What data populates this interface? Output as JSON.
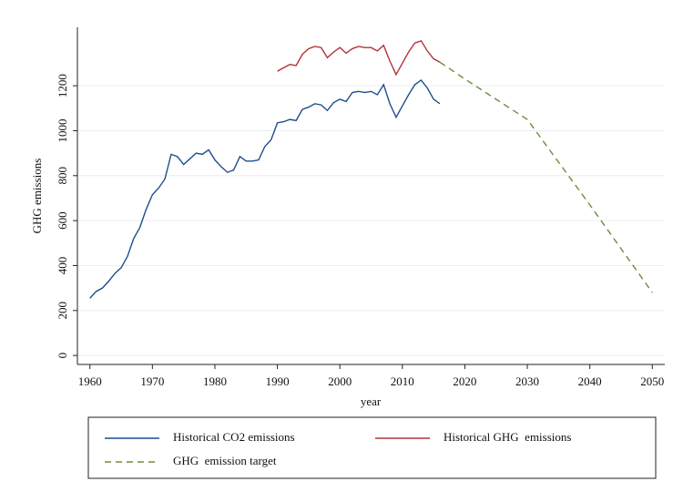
{
  "chart_data": {
    "type": "line",
    "x_label": "year",
    "y_label": "GHG emissions",
    "xlim": [
      1958,
      2052
    ],
    "ylim": [
      -40,
      1460
    ],
    "xticks": [
      1960,
      1970,
      1980,
      1990,
      2000,
      2010,
      2020,
      2030,
      2040,
      2050
    ],
    "yticks": [
      0,
      200,
      400,
      600,
      800,
      1000,
      1200
    ],
    "grid": true,
    "legend": "bottom",
    "series": [
      {
        "name": "Historical CO2 emissions",
        "color": "#1f4e8c",
        "style": "solid",
        "x": [
          1960,
          1961,
          1962,
          1963,
          1964,
          1965,
          1966,
          1967,
          1968,
          1969,
          1970,
          1971,
          1972,
          1973,
          1974,
          1975,
          1976,
          1977,
          1978,
          1979,
          1980,
          1981,
          1982,
          1983,
          1984,
          1985,
          1986,
          1987,
          1988,
          1989,
          1990,
          1991,
          1992,
          1993,
          1994,
          1995,
          1996,
          1997,
          1998,
          1999,
          2000,
          2001,
          2002,
          2003,
          2004,
          2005,
          2006,
          2007,
          2008,
          2009,
          2010,
          2011,
          2012,
          2013,
          2014,
          2015,
          2016
        ],
        "values": [
          255,
          285,
          300,
          330,
          365,
          390,
          440,
          520,
          570,
          650,
          715,
          745,
          785,
          895,
          885,
          850,
          875,
          900,
          895,
          915,
          870,
          840,
          815,
          825,
          885,
          865,
          865,
          870,
          930,
          960,
          1035,
          1040,
          1050,
          1045,
          1095,
          1105,
          1120,
          1115,
          1090,
          1125,
          1140,
          1130,
          1170,
          1175,
          1170,
          1175,
          1160,
          1205,
          1120,
          1060,
          1110,
          1160,
          1205,
          1225,
          1190,
          1140,
          1120
        ]
      },
      {
        "name": "Historical GHG  emissions",
        "color": "#b0343a",
        "style": "solid",
        "x": [
          1990,
          1991,
          1992,
          1993,
          1994,
          1995,
          1996,
          1997,
          1998,
          1999,
          2000,
          2001,
          2002,
          2003,
          2004,
          2005,
          2006,
          2007,
          2008,
          2009,
          2010,
          2011,
          2012,
          2013,
          2014,
          2015,
          2016
        ],
        "values": [
          1265,
          1280,
          1295,
          1290,
          1340,
          1365,
          1375,
          1370,
          1325,
          1350,
          1370,
          1345,
          1365,
          1375,
          1370,
          1370,
          1355,
          1380,
          1310,
          1250,
          1300,
          1350,
          1390,
          1400,
          1355,
          1320,
          1305
        ]
      },
      {
        "name": "GHG  emission target",
        "color": "#6b8e3a",
        "style": "dashed",
        "x": [
          2016,
          2020,
          2030,
          2040,
          2050
        ],
        "values": [
          1305,
          1230,
          1050,
          670,
          280
        ]
      }
    ]
  }
}
